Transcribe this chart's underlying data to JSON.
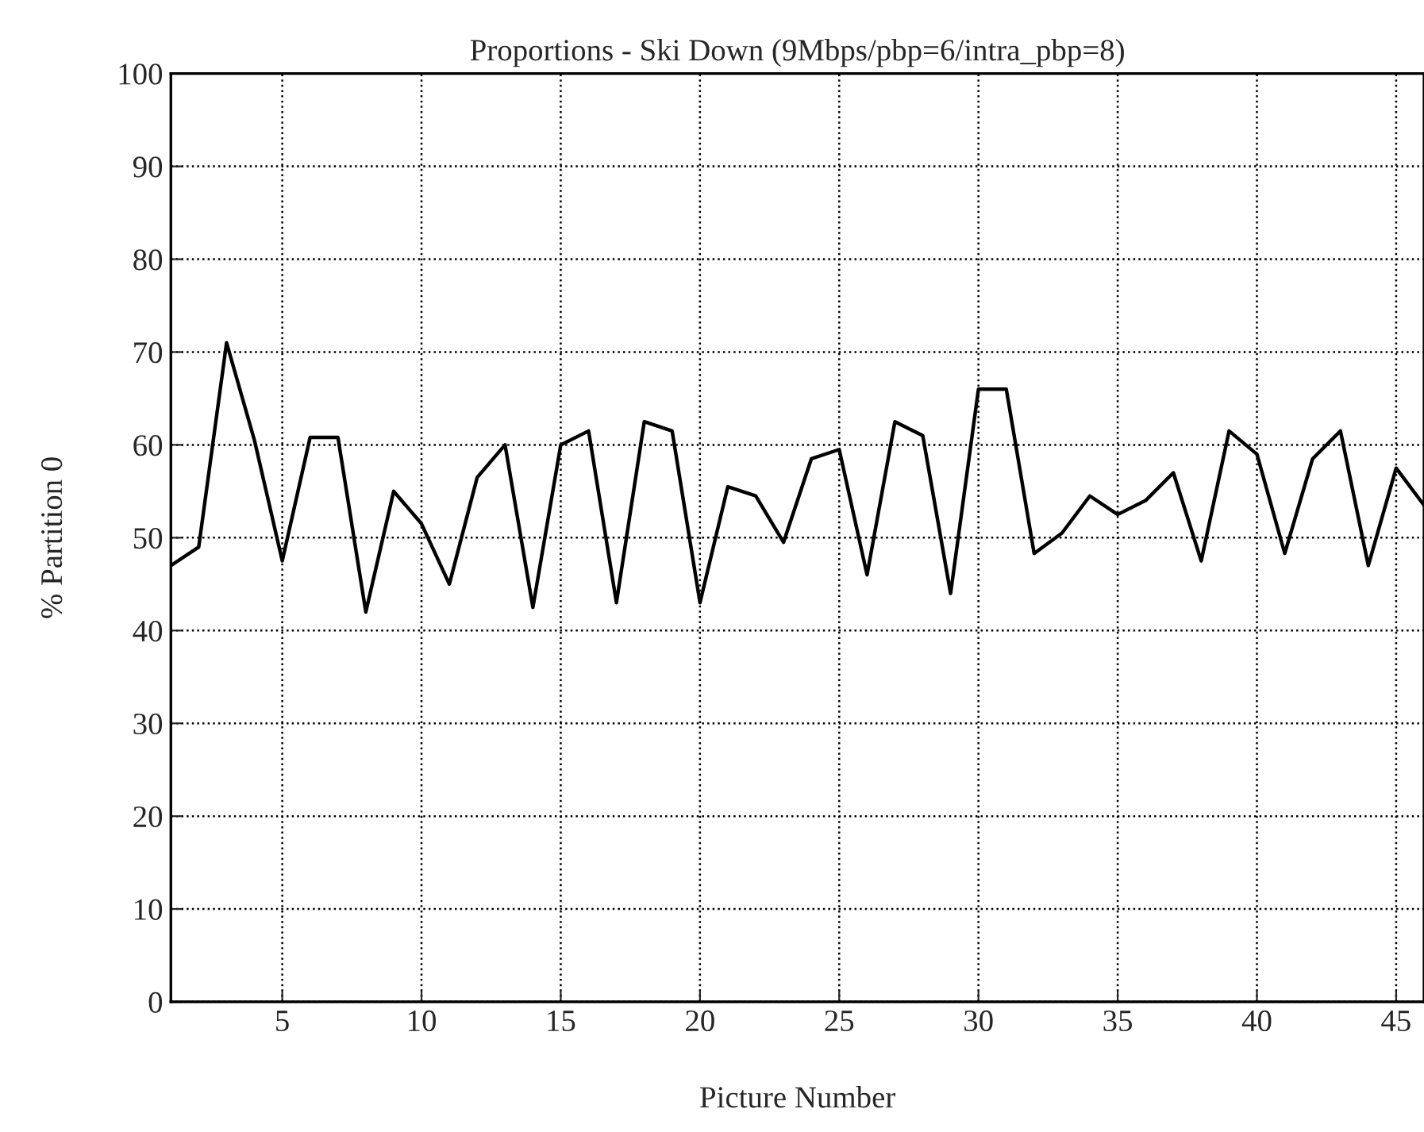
{
  "chart_data": {
    "type": "line",
    "title": "Proportions - Ski Down (9Mbps/pbp=6/intra_pbp=8)",
    "xlabel": "Picture Number",
    "ylabel": "% Partition 0",
    "x": [
      1,
      2,
      3,
      4,
      5,
      6,
      7,
      8,
      9,
      10,
      11,
      12,
      13,
      14,
      15,
      16,
      17,
      18,
      19,
      20,
      21,
      22,
      23,
      24,
      25,
      26,
      27,
      28,
      29,
      30,
      31,
      32,
      33,
      34,
      35,
      36,
      37,
      38,
      39,
      40,
      41,
      42,
      43,
      44,
      45,
      46
    ],
    "series": [
      {
        "color": "#000000",
        "values": [
          47,
          49,
          71,
          60.5,
          47.5,
          60.8,
          60.8,
          42,
          55,
          51.5,
          45,
          56.5,
          60,
          42.5,
          60,
          61.5,
          43,
          62.5,
          61.5,
          43,
          55.5,
          54.5,
          49.5,
          58.5,
          59.5,
          46,
          62.5,
          61,
          44,
          66,
          66,
          48.3,
          50.5,
          54.5,
          52.5,
          54,
          57,
          47.5,
          61.5,
          59,
          48.3,
          58.5,
          61.5,
          47,
          57.5,
          53.5
        ]
      }
    ],
    "xlim": [
      1,
      46
    ],
    "xticks": [
      5,
      10,
      15,
      20,
      25,
      30,
      35,
      40,
      45
    ],
    "ylim": [
      0,
      100
    ],
    "yticks": [
      0,
      10,
      20,
      30,
      40,
      50,
      60,
      70,
      80,
      90,
      100
    ],
    "grid": true,
    "line_style": "solid",
    "marker": "none",
    "legend": false
  }
}
